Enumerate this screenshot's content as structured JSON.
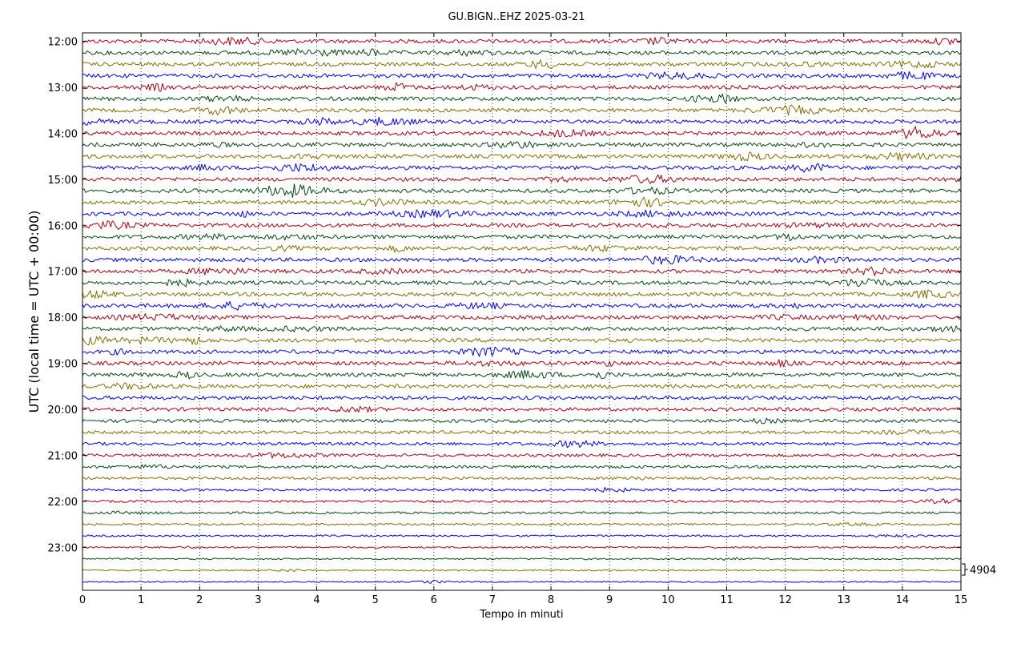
{
  "chart_data": {
    "type": "line",
    "title": "GU.BIGN..EHZ 2025-03-21",
    "xlabel": "Tempo in minuti",
    "ylabel": "UTC (local time = UTC + 00:00)",
    "xlim": [
      0,
      15
    ],
    "x_ticks": [
      "0",
      "1",
      "2",
      "3",
      "4",
      "5",
      "6",
      "7",
      "8",
      "9",
      "10",
      "11",
      "12",
      "13",
      "14",
      "15"
    ],
    "y_ticks": [
      "12:00",
      "13:00",
      "14:00",
      "15:00",
      "16:00",
      "17:00",
      "18:00",
      "19:00",
      "20:00",
      "21:00",
      "22:00",
      "23:00"
    ],
    "row_start": "12:00",
    "row_interval_minutes": 15,
    "row_count": 48,
    "colors": [
      "#b00010",
      "#004d10",
      "#807000",
      "#0000ff"
    ],
    "grid": "vertical dotted",
    "scale_label": "4904"
  }
}
